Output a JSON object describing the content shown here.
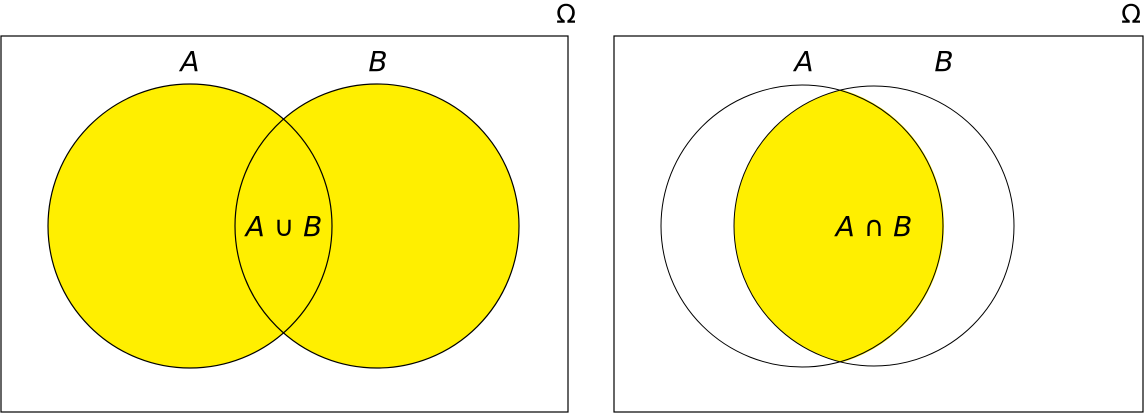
{
  "colors": {
    "fill": "#ffef00",
    "stroke": "#000000",
    "background": "#ffffff"
  },
  "diagrams": [
    {
      "universe_label": "Ω",
      "set_a_label": "A",
      "set_b_label": "B",
      "region_label": "A ∪ B",
      "shaded_region": "union"
    },
    {
      "universe_label": "Ω",
      "set_a_label": "A",
      "set_b_label": "B",
      "region_label": "A ∩ B",
      "shaded_region": "intersection"
    }
  ]
}
